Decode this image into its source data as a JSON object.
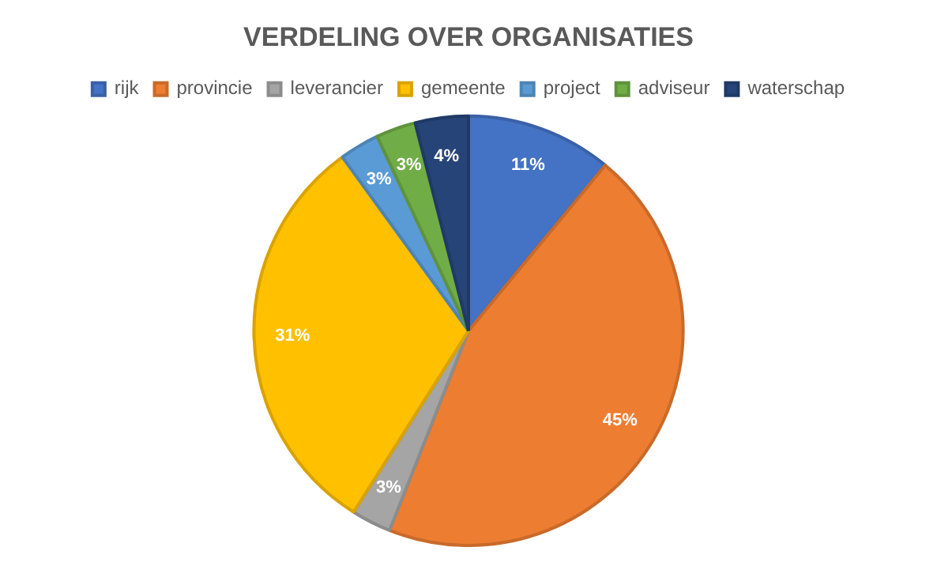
{
  "chart_data": {
    "type": "pie",
    "title": "VERDELING OVER ORGANISATIES",
    "categories": [
      "rijk",
      "provincie",
      "leverancier",
      "gemeente",
      "project",
      "adviseur",
      "waterschap"
    ],
    "values": [
      11,
      45,
      3,
      31,
      3,
      3,
      4
    ],
    "value_labels": [
      "11%",
      "45%",
      "3%",
      "31%",
      "3%",
      "3%",
      "4%"
    ],
    "colors": [
      "#4472c4",
      "#ed7d31",
      "#a5a5a5",
      "#ffc000",
      "#5b9bd5",
      "#70ad47",
      "#264478"
    ],
    "legend": "top"
  }
}
